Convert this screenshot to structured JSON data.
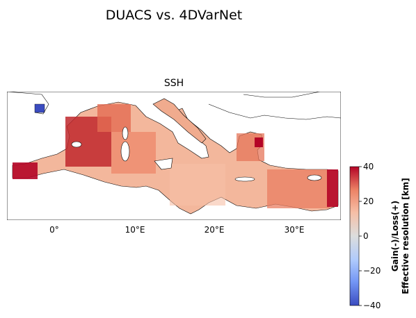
{
  "figure": {
    "title": "DUACS vs. 4DVarNet",
    "subplot_title": "SSH",
    "lon_ticks": [
      "0°",
      "10°E",
      "20°E",
      "30°E"
    ],
    "colorbar": {
      "label_line1": "Gain(-)/Loss(+)",
      "label_line2": "Effective resolution [km]",
      "ticks": [
        "40",
        "20",
        "0",
        "−20",
        "−40"
      ],
      "vmin": -40,
      "vmax": 40,
      "colormap": "coolwarm",
      "colors": [
        "#3b4cc0",
        "#7396f5",
        "#b0cbfc",
        "#dcdddd",
        "#f6bfa6",
        "#ed8366",
        "#b40426"
      ]
    },
    "map": {
      "lon_range": [
        -6,
        36
      ],
      "lat_range": [
        30,
        46
      ],
      "coastline_color": "#000000",
      "land_color": "#ffffff"
    }
  }
}
